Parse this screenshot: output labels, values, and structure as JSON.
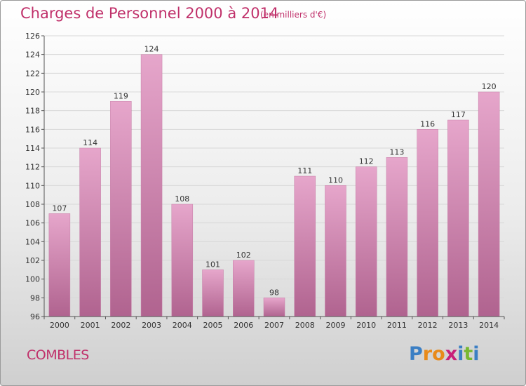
{
  "title": "Charges de Personnel 2000 à 2014",
  "subtitle": "(en milliers d'€)",
  "commune": "COMBLES",
  "logo": {
    "letters": [
      "P",
      "r",
      "o",
      "x",
      "i",
      "t",
      "i"
    ],
    "colors": [
      "#3b7fc4",
      "#e88a1a",
      "#e88a1a",
      "#c8207a",
      "#3b7fc4",
      "#78b832",
      "#3b7fc4"
    ]
  },
  "colors": {
    "bar": "#d98ab8",
    "bar_dark": "#b55d91",
    "title": "#c0306a"
  },
  "chart_data": {
    "type": "bar",
    "title": "Charges de Personnel 2000 à 2014",
    "subtitle": "(en milliers d'€)",
    "categories": [
      "2000",
      "2001",
      "2002",
      "2003",
      "2004",
      "2005",
      "2006",
      "2007",
      "2008",
      "2009",
      "2010",
      "2011",
      "2012",
      "2013",
      "2014"
    ],
    "values": [
      107,
      114,
      119,
      124,
      108,
      101,
      102,
      98,
      111,
      110,
      112,
      113,
      116,
      117,
      120
    ],
    "ylim": [
      96,
      126
    ],
    "yticks": [
      96,
      98,
      100,
      102,
      104,
      106,
      108,
      110,
      112,
      114,
      116,
      118,
      120,
      122,
      124,
      126
    ],
    "grid": true,
    "data_labels": true
  }
}
